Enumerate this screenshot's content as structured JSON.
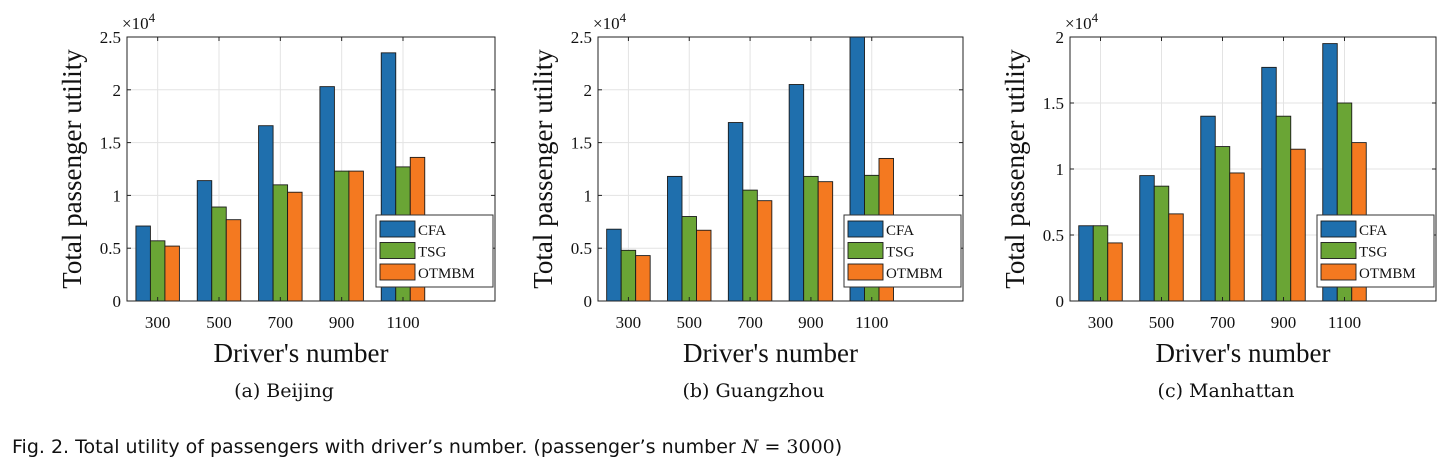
{
  "chart_data": [
    {
      "type": "bar",
      "subcaption": "(a)  Beijing",
      "xlabel": "Driver's number",
      "ylabel": "Total passenger utility",
      "exponent": "×10",
      "exponent_power": "4",
      "categories": [
        "300",
        "500",
        "700",
        "900",
        "1100"
      ],
      "yticks": [
        "0",
        "0.5",
        "1",
        "1.5",
        "2",
        "2.5"
      ],
      "ylim": [
        0,
        2.5
      ],
      "xlim": [
        0.5,
        6.5
      ],
      "legend_position": "bottom-right",
      "grid": true,
      "series": [
        {
          "name": "CFA",
          "values": [
            0.71,
            1.14,
            1.66,
            2.03,
            2.35
          ]
        },
        {
          "name": "TSG",
          "values": [
            0.57,
            0.89,
            1.1,
            1.23,
            1.27
          ]
        },
        {
          "name": "OTMBM",
          "values": [
            0.52,
            0.77,
            1.03,
            1.23,
            1.36
          ]
        }
      ]
    },
    {
      "type": "bar",
      "subcaption": "(b)  Guangzhou",
      "xlabel": "Driver's number",
      "ylabel": "Total passenger utility",
      "exponent": "×10",
      "exponent_power": "4",
      "categories": [
        "300",
        "500",
        "700",
        "900",
        "1100"
      ],
      "yticks": [
        "0",
        "0.5",
        "1",
        "1.5",
        "2",
        "2.5"
      ],
      "ylim": [
        0,
        2.5
      ],
      "xlim": [
        0.5,
        6.5
      ],
      "legend_position": "bottom-right",
      "grid": true,
      "series": [
        {
          "name": "CFA",
          "values": [
            0.68,
            1.18,
            1.69,
            2.05,
            2.5
          ]
        },
        {
          "name": "TSG",
          "values": [
            0.48,
            0.8,
            1.05,
            1.18,
            1.19
          ]
        },
        {
          "name": "OTMBM",
          "values": [
            0.43,
            0.67,
            0.95,
            1.13,
            1.35
          ]
        }
      ]
    },
    {
      "type": "bar",
      "subcaption": "(c)  Manhattan",
      "xlabel": "Driver's number",
      "ylabel": "Total passenger utility",
      "exponent": "×10",
      "exponent_power": "4",
      "categories": [
        "300",
        "500",
        "700",
        "900",
        "1100"
      ],
      "yticks": [
        "0",
        "0.5",
        "1",
        "1.5",
        "2"
      ],
      "ylim": [
        0,
        2
      ],
      "xlim": [
        0.5,
        6.5
      ],
      "legend_position": "bottom-right",
      "grid": true,
      "series": [
        {
          "name": "CFA",
          "values": [
            0.57,
            0.95,
            1.4,
            1.77,
            1.95
          ]
        },
        {
          "name": "TSG",
          "values": [
            0.57,
            0.87,
            1.17,
            1.4,
            1.5
          ]
        },
        {
          "name": "OTMBM",
          "values": [
            0.44,
            0.66,
            0.97,
            1.15,
            1.2
          ]
        }
      ]
    }
  ],
  "colors": {
    "CFA": "#1f6fad",
    "TSG": "#6aa535",
    "OTMBM": "#f47920"
  },
  "caption": {
    "text": "Fig. 2. Total utility of passengers with driver’s number. (passenger’s number ",
    "var": "N",
    "eq": " = ",
    "value": "3000",
    "close": ")"
  }
}
